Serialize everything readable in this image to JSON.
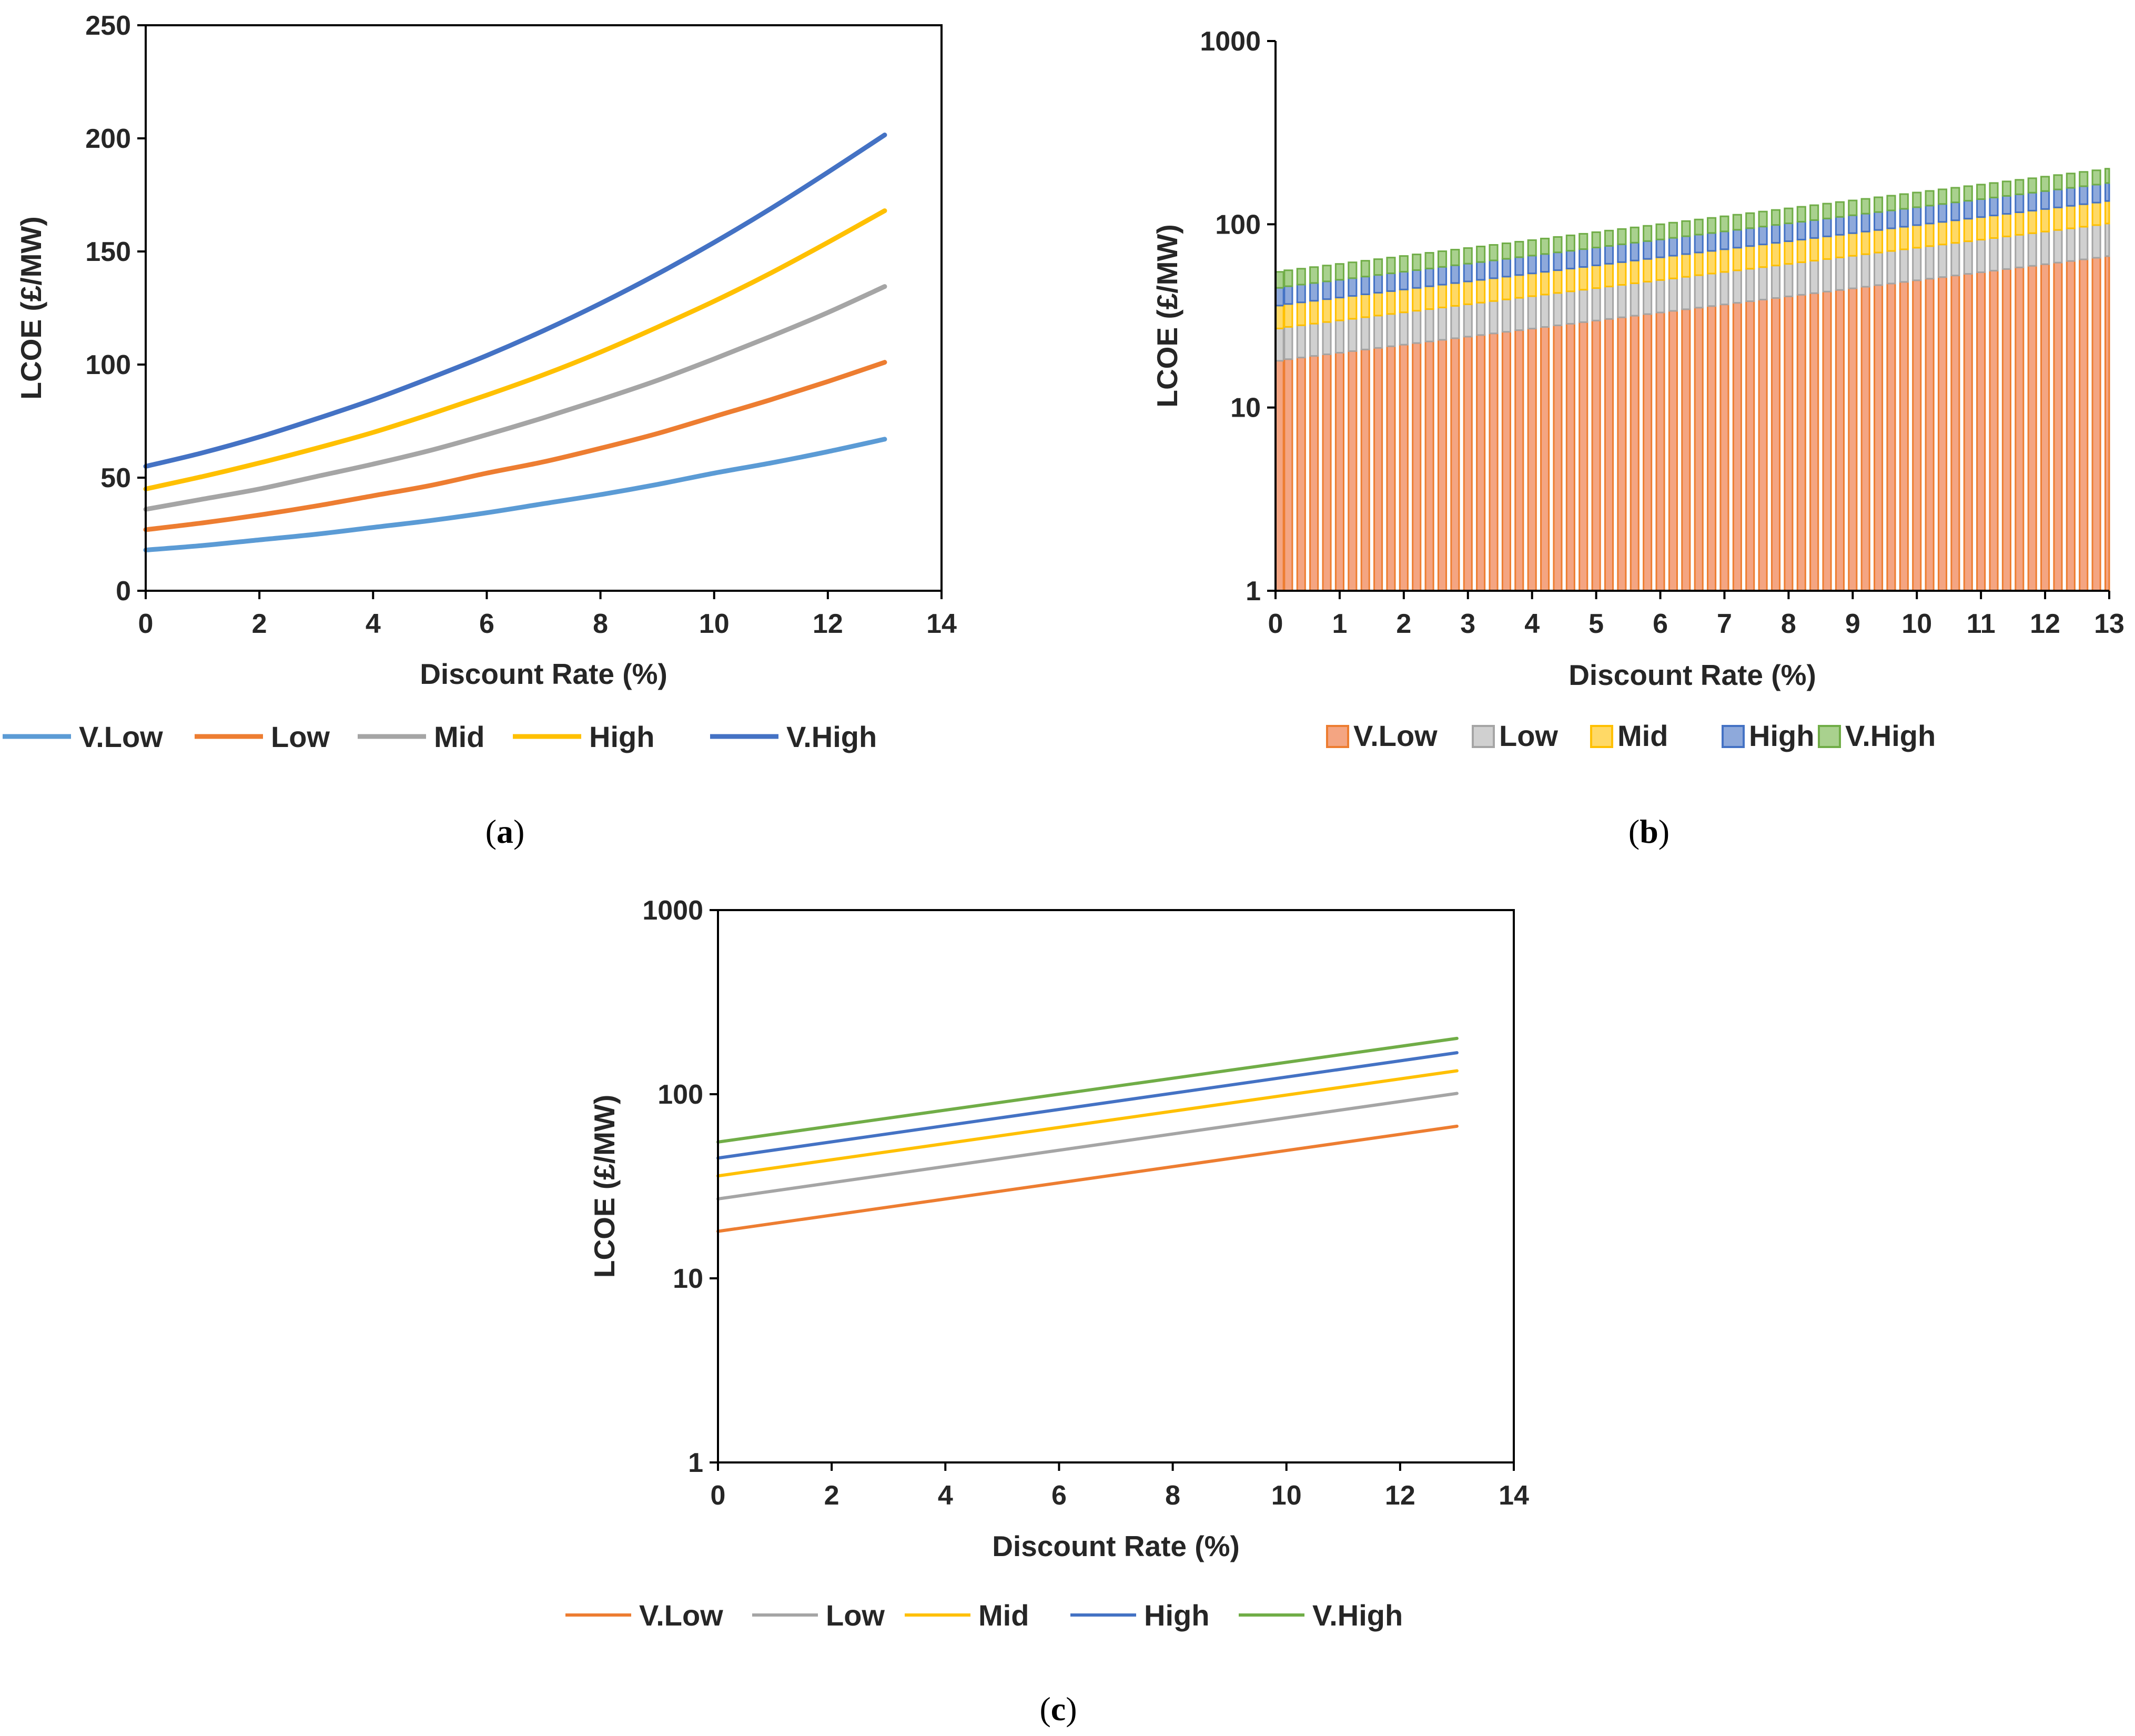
{
  "chart_data": [
    {
      "id": "a",
      "type": "line",
      "caption": "a",
      "xlabel": "Discount Rate (%)",
      "ylabel": "LCOE (£/MW)",
      "xlim": [
        0,
        14
      ],
      "ylim": [
        0,
        250
      ],
      "yscale": "linear",
      "xticks": [
        "0",
        "2",
        "4",
        "6",
        "8",
        "10",
        "12",
        "14"
      ],
      "yticks": [
        "0",
        "50",
        "100",
        "150",
        "200",
        "250"
      ],
      "grid": false,
      "legend_position": "bottom",
      "x": [
        0,
        1,
        2,
        3,
        4,
        5,
        6,
        7,
        8,
        9,
        10,
        11,
        12,
        13
      ],
      "series": [
        {
          "name": "V.Low",
          "color": "#5B9BD5",
          "values": [
            18,
            20,
            22.5,
            25,
            28,
            31,
            34.5,
            38.5,
            42.5,
            47,
            52,
            56.5,
            61.5,
            67
          ]
        },
        {
          "name": "Low",
          "color": "#ED7D31",
          "values": [
            27,
            30,
            33.5,
            37.5,
            42,
            46.5,
            52,
            57,
            63,
            69.5,
            77,
            84.5,
            92.5,
            101
          ]
        },
        {
          "name": "Mid",
          "color": "#A5A5A5",
          "values": [
            36,
            40.5,
            45,
            50.5,
            56,
            62,
            69,
            76.5,
            84.5,
            93,
            102.5,
            112.5,
            123,
            134.5
          ]
        },
        {
          "name": "High",
          "color": "#FFC000",
          "values": [
            45,
            50.5,
            56.5,
            63,
            70,
            78,
            86.5,
            95.5,
            105.5,
            116.5,
            128,
            140.5,
            154,
            168
          ]
        },
        {
          "name": "V.High",
          "color": "#4472C4",
          "values": [
            55,
            61,
            68,
            76,
            84.5,
            94,
            104,
            115,
            127,
            140,
            154,
            169,
            185,
            201.5
          ]
        }
      ]
    },
    {
      "id": "b",
      "type": "bar",
      "stacked": true,
      "caption": "b",
      "xlabel": "Discount Rate (%)",
      "ylabel": "LCOE (£/MW)",
      "xlim": [
        0,
        13
      ],
      "ylim": [
        1,
        1000
      ],
      "yscale": "log",
      "xticks": [
        "0",
        "1",
        "2",
        "3",
        "4",
        "5",
        "6",
        "7",
        "8",
        "9",
        "10",
        "11",
        "12",
        "13"
      ],
      "yticks": [
        "1",
        "10",
        "100",
        "1000"
      ],
      "grid": false,
      "legend_position": "bottom",
      "bar_step": 0.2,
      "series": [
        {
          "name": "V.Low",
          "color": "#F4A582",
          "edge": "#ED7D31",
          "start": 18,
          "end": 67
        },
        {
          "name": "Low",
          "color": "#D0D0D0",
          "edge": "#A5A5A5",
          "start": 27,
          "end": 101
        },
        {
          "name": "Mid",
          "color": "#FFD966",
          "edge": "#FFC000",
          "start": 36,
          "end": 134
        },
        {
          "name": "High",
          "color": "#8EA9DB",
          "edge": "#4472C4",
          "start": 45,
          "end": 168
        },
        {
          "name": "V.High",
          "color": "#A9D18E",
          "edge": "#70AD47",
          "start": 55,
          "end": 201
        }
      ]
    },
    {
      "id": "c",
      "type": "line",
      "caption": "c",
      "xlabel": "Discount Rate (%)",
      "ylabel": "LCOE (£/MW)",
      "xlim": [
        0,
        14
      ],
      "ylim": [
        1,
        1000
      ],
      "yscale": "log",
      "xticks": [
        "0",
        "2",
        "4",
        "6",
        "8",
        "10",
        "12",
        "14"
      ],
      "yticks": [
        "1",
        "10",
        "100",
        "1000"
      ],
      "grid": false,
      "legend_position": "bottom",
      "x": [
        0,
        13
      ],
      "series": [
        {
          "name": "V.Low",
          "color": "#ED7D31",
          "values": [
            18,
            67
          ]
        },
        {
          "name": "Low",
          "color": "#A5A5A5",
          "values": [
            27,
            101
          ]
        },
        {
          "name": "Mid",
          "color": "#FFC000",
          "values": [
            36,
            134
          ]
        },
        {
          "name": "High",
          "color": "#4472C4",
          "values": [
            45,
            168
          ]
        },
        {
          "name": "V.High",
          "color": "#70AD47",
          "values": [
            55,
            201
          ]
        }
      ]
    }
  ]
}
